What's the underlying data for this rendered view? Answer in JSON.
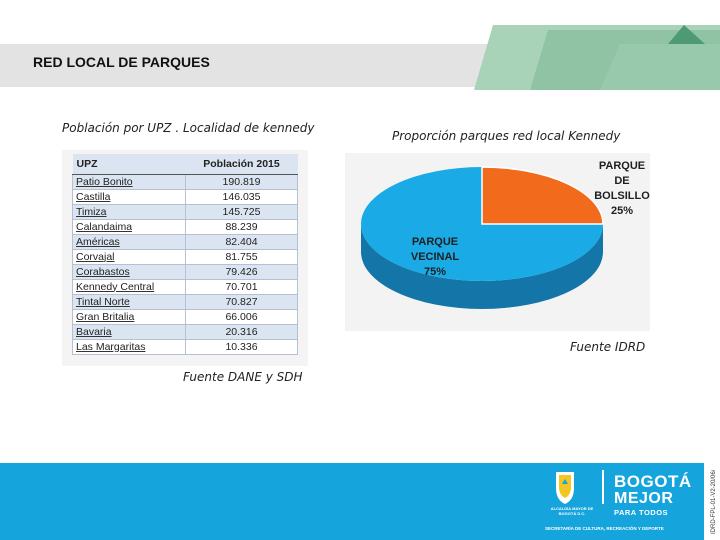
{
  "header": {
    "title": "RED LOCAL DE PARQUES"
  },
  "left": {
    "caption": "Población por UPZ . Localidad de kennedy",
    "source": "Fuente DANE y SDH"
  },
  "right": {
    "caption": "Proporción parques red local Kennedy",
    "source": "Fuente IDRD"
  },
  "chart_data": [
    {
      "type": "table",
      "columns": [
        "UPZ",
        "Población 2015"
      ],
      "rows": [
        [
          "Patio Bonito",
          "190.819"
        ],
        [
          "Castilla",
          "146.035"
        ],
        [
          "Timiza",
          "145.725"
        ],
        [
          "Calandaima",
          "88.239"
        ],
        [
          "Américas",
          "82.404"
        ],
        [
          "Corvajal",
          "81.755"
        ],
        [
          "Corabastos",
          "79.426"
        ],
        [
          "Kennedy Central",
          "70.701"
        ],
        [
          "Tintal Norte",
          "70.827"
        ],
        [
          "Gran Britalia",
          "66.006"
        ],
        [
          "Bavaria",
          "20.316"
        ],
        [
          "Las Margaritas",
          "10.336"
        ]
      ]
    },
    {
      "type": "pie",
      "title": "",
      "categories": [
        "PARQUE VECINAL",
        "PARQUE DE BOLSILLO"
      ],
      "values": [
        75,
        25
      ],
      "label_lines": [
        [
          "PARQUE",
          "VECINAL",
          "75%"
        ],
        [
          "PARQUE",
          "DE",
          "BOLSILLO",
          "25%"
        ]
      ],
      "colors": [
        "#1aabe6",
        "#f26a1b"
      ],
      "side_colors": [
        "#1476a8",
        "#b34c10"
      ]
    }
  ],
  "footer": {
    "mayor_text": "ALCALDÍA MAYOR DE BOGOTÁ D.C.",
    "brand_line1": "BOGOTÁ",
    "brand_line2": "MEJOR",
    "brand_line3": "PARA TODOS",
    "secretaria": "SECRETARÍA DE CULTURA, RECREACIÓN Y DEPORTE",
    "side_code": "IDRD-FPL-01-V2-20/06/2016",
    "colors": {
      "footer": "#16a4dd",
      "accent_green": "#8fc3a4",
      "dark_green": "#4e9a74"
    }
  }
}
